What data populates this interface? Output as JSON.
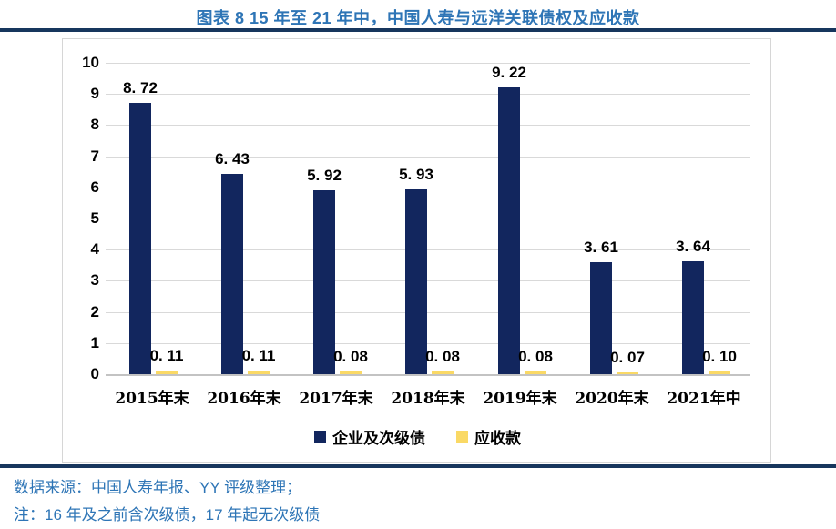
{
  "title": "图表 8 15 年至 21 年中，中国人寿与远洋关联债权及应收款",
  "colors": {
    "navy_bar": "#12265E",
    "gold_bar": "#FAD965",
    "title_blue": "#2E75B6",
    "rule_navy": "#17365D",
    "gridline_gray": "#D9D9D9",
    "label_black": "#000000"
  },
  "chart_data": {
    "type": "bar",
    "categories": [
      "2015年末",
      "2016年末",
      "2017年末",
      "2018年末",
      "2019年末",
      "2020年末",
      "2021年中"
    ],
    "series": [
      {
        "name": "企业及次级债",
        "color_key": "navy_bar",
        "values": [
          8.72,
          6.43,
          5.92,
          5.93,
          9.22,
          3.61,
          3.64
        ],
        "labels": [
          "8. 72",
          "6. 43",
          "5. 92",
          "5. 93",
          "9. 22",
          "3. 61",
          "3. 64"
        ]
      },
      {
        "name": "应收款",
        "color_key": "gold_bar",
        "values": [
          0.11,
          0.11,
          0.08,
          0.08,
          0.08,
          0.07,
          0.1
        ],
        "labels": [
          "0. 11",
          "0. 11",
          "0. 08",
          "0. 08",
          "0. 08",
          "0. 07",
          "0. 10"
        ]
      }
    ],
    "ylim": [
      0,
      10
    ],
    "ytick_step": 1,
    "yticks": [
      "0",
      "1",
      "2",
      "3",
      "4",
      "5",
      "6",
      "7",
      "8",
      "9",
      "10"
    ],
    "grid": true,
    "legend_position": "bottom"
  },
  "legend": {
    "items": [
      {
        "label": "企业及次级债"
      },
      {
        "label": "应收款"
      }
    ]
  },
  "footer": {
    "source": "数据来源：中国人寿年报、YY 评级整理；",
    "note": "注：16 年及之前含次级债，17 年起无次级债"
  }
}
